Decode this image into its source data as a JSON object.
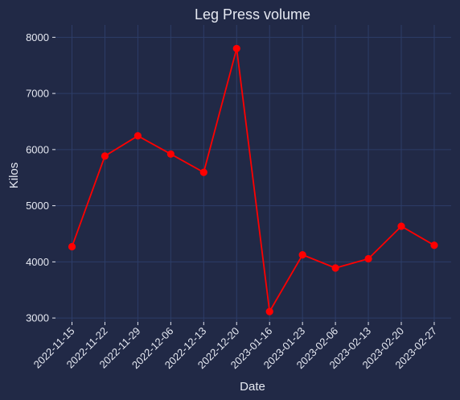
{
  "chart_data": {
    "type": "line",
    "title": "Leg Press volume",
    "xlabel": "Date",
    "ylabel": "Kilos",
    "categories": [
      "2022-11-15",
      "2022-11-22",
      "2022-11-29",
      "2022-12-06",
      "2022-12-13",
      "2022-12-20",
      "2023-01-16",
      "2023-01-23",
      "2023-02-06",
      "2023-02-13",
      "2023-02-20",
      "2023-02-27"
    ],
    "series": [
      {
        "values": [
          4270,
          5885,
          6245,
          5920,
          5595,
          7800,
          3115,
          4125,
          3890,
          4055,
          4635,
          4295
        ],
        "color": "#ff0000"
      }
    ],
    "y_ticks": [
      3000,
      4000,
      5000,
      6000,
      7000,
      8000
    ],
    "ylim": [
      2930,
      8220
    ],
    "grid": true,
    "colors": {
      "background": "#212946",
      "grid": "#2d3d68",
      "text": "#e6e9f2",
      "line": "#ff0000"
    }
  }
}
